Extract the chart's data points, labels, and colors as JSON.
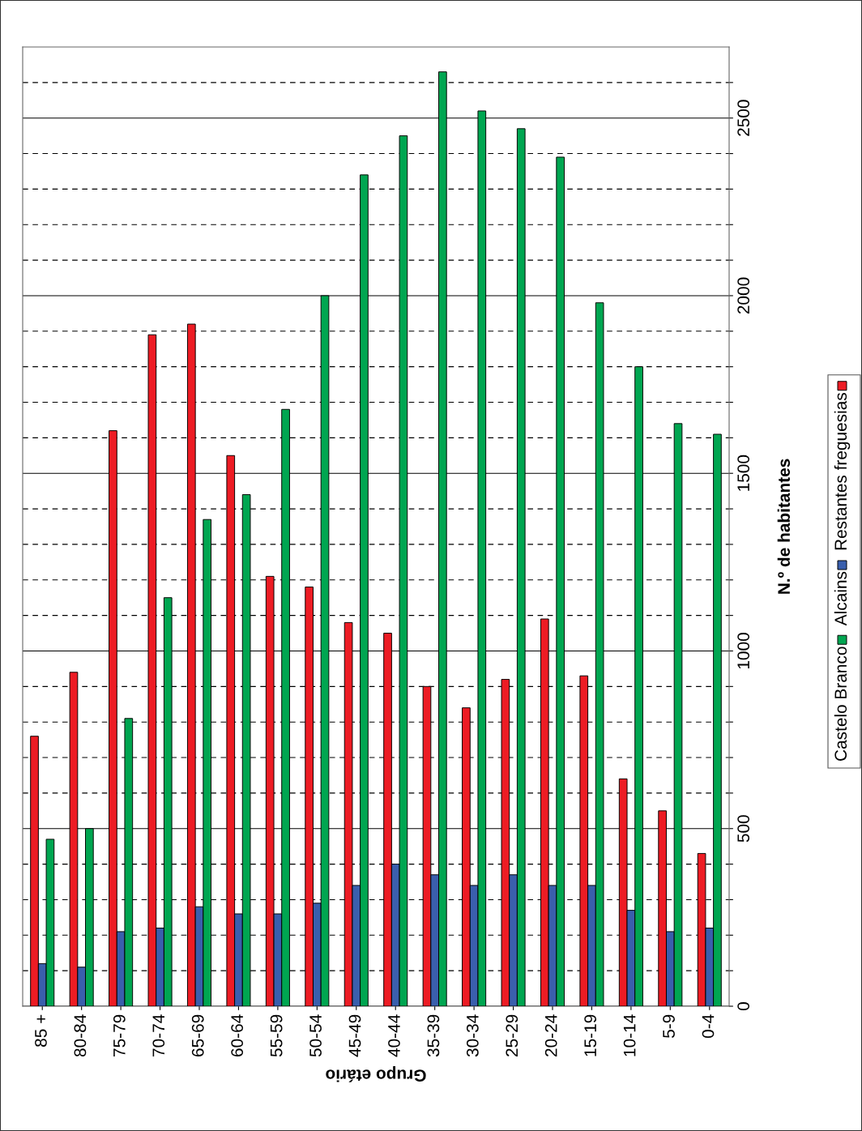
{
  "chart_data": {
    "type": "bar",
    "categories": [
      "85 +",
      "80-84",
      "75-79",
      "70-74",
      "65-69",
      "60-64",
      "55-59",
      "50-54",
      "45-49",
      "40-44",
      "35-39",
      "30-34",
      "25-29",
      "20-24",
      "15-19",
      "10-14",
      "5-9",
      "0-4"
    ],
    "series": [
      {
        "name": "Restantes freguesias",
        "color": "#ed1c24",
        "values": [
          760,
          940,
          1620,
          1890,
          1920,
          1550,
          1210,
          1180,
          1080,
          1050,
          900,
          840,
          920,
          1090,
          930,
          640,
          550,
          430
        ]
      },
      {
        "name": "Alcains",
        "color": "#3a5fad",
        "values": [
          120,
          110,
          210,
          220,
          280,
          260,
          260,
          290,
          340,
          400,
          370,
          340,
          370,
          340,
          340,
          270,
          210,
          220
        ]
      },
      {
        "name": "Castelo Branco",
        "color": "#00a651",
        "values": [
          470,
          500,
          810,
          1150,
          1370,
          1440,
          1680,
          2000,
          2340,
          2450,
          2630,
          2520,
          2470,
          2390,
          1980,
          1800,
          1640,
          1610
        ]
      }
    ],
    "xlabel": "Grupo etário",
    "ylabel": "N.º de habitantes",
    "ylim": [
      0,
      2700
    ],
    "yticks": [
      0,
      {
        "value": 100,
        "label": null
      },
      {
        "value": 200,
        "label": null
      },
      {
        "value": 300,
        "label": null
      },
      {
        "value": 400,
        "label": null
      },
      500,
      {
        "value": 600,
        "label": null
      },
      {
        "value": 700,
        "label": null
      },
      {
        "value": 800,
        "label": null
      },
      {
        "value": 900,
        "label": null
      },
      1000,
      {
        "value": 1100,
        "label": null
      },
      {
        "value": 1200,
        "label": null
      },
      {
        "value": 1300,
        "label": null
      },
      {
        "value": 1400,
        "label": null
      },
      1500,
      {
        "value": 1600,
        "label": null
      },
      {
        "value": 1700,
        "label": null
      },
      {
        "value": 1800,
        "label": null
      },
      {
        "value": 1900,
        "label": null
      },
      2000,
      {
        "value": 2100,
        "label": null
      },
      {
        "value": 2200,
        "label": null
      },
      {
        "value": 2300,
        "label": null
      },
      {
        "value": 2400,
        "label": null
      },
      2500,
      {
        "value": 2600,
        "label": null
      }
    ],
    "grid": "y",
    "legend": "right"
  }
}
